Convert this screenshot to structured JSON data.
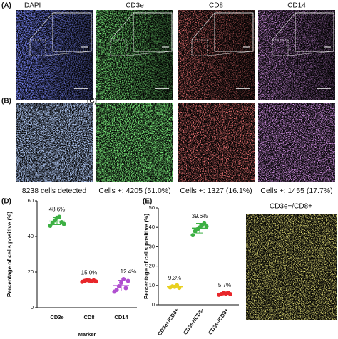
{
  "panel_labels": [
    "(A)",
    "(B)",
    "(C)",
    "(D)",
    "(E)"
  ],
  "stain_titles": [
    "DAPI",
    "CD3e",
    "CD8",
    "CD14"
  ],
  "count_captions": [
    "8238 cells detected",
    "Cells +: 4205 (51.0%)",
    "Cells +: 1327 (16.1%)",
    "Cells +: 1455 (17.7%)"
  ],
  "overlay_title": "CD3e+/CD8+",
  "chart_data": [
    {
      "type": "dotplot",
      "ylabel": "Percentage of cells positive (%)",
      "xlabel": "Marker",
      "categories": [
        "CD3e",
        "CD8",
        "CD14"
      ],
      "values": [
        48.6,
        15.0,
        12.4
      ],
      "value_labels": [
        "48.6%",
        "15.0%",
        "12.4%"
      ],
      "errors": [
        2,
        0.5,
        3
      ],
      "points": [
        [
          46,
          47.5,
          49,
          50.5,
          51,
          48,
          47
        ],
        [
          14.5,
          15,
          15.5,
          15.2,
          14.8,
          15.3,
          14.7
        ],
        [
          9,
          10,
          12,
          14,
          16,
          11,
          15
        ]
      ],
      "colors": [
        "#3cb043",
        "#e8262a",
        "#b04fd0"
      ],
      "ylim": [
        0,
        60
      ],
      "yticks": [
        0,
        20,
        40,
        60
      ]
    },
    {
      "type": "dotplot",
      "ylabel": "Percentage of cells positive (%)",
      "categories": [
        "CD3e+/CD8+",
        "CD3e+/CD8-",
        "CD3e-/CD8+"
      ],
      "values": [
        9.3,
        39.6,
        5.7
      ],
      "value_labels": [
        "9.3%",
        "39.6%",
        "5.7%"
      ],
      "errors": [
        0.6,
        2.5,
        0.4
      ],
      "points": [
        [
          9,
          9.5,
          9.3,
          10,
          8.8
        ],
        [
          36,
          38,
          39,
          40,
          41,
          42,
          40.5
        ],
        [
          5.2,
          5.5,
          6,
          5.8,
          6.2,
          5.5
        ]
      ],
      "colors": [
        "#e8d020",
        "#3cb043",
        "#e8262a"
      ],
      "ylim": [
        0,
        50
      ],
      "yticks": [
        0,
        10,
        20,
        30,
        40,
        50
      ]
    }
  ]
}
